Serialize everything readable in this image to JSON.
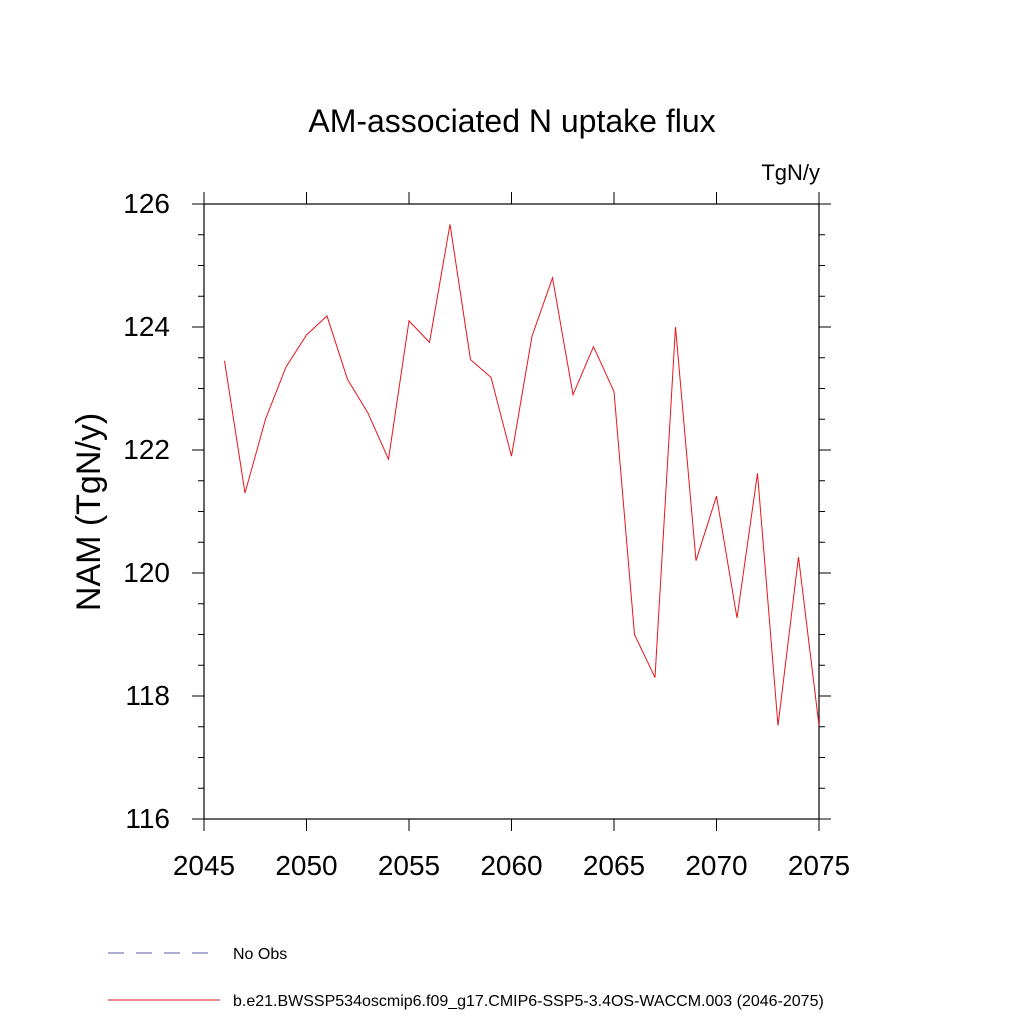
{
  "chart_data": {
    "type": "line",
    "title": "AM-associated N uptake flux",
    "units_label": "TgN/y",
    "xlabel": "",
    "ylabel": "NAM  (TgN/y)",
    "xlim": [
      2045,
      2075
    ],
    "ylim": [
      116,
      126
    ],
    "x_ticks": [
      2045,
      2050,
      2055,
      2060,
      2065,
      2070,
      2075
    ],
    "y_ticks": [
      116,
      118,
      120,
      122,
      124,
      126
    ],
    "series": [
      {
        "name": "b.e21.BWSSP534oscmip6.f09_g17.CMIP6-SSP5-3.4OS-WACCM.003 (2046-2075)",
        "color": "#e8141b",
        "x": [
          2046,
          2047,
          2048,
          2049,
          2050,
          2051,
          2052,
          2053,
          2054,
          2055,
          2056,
          2057,
          2058,
          2059,
          2060,
          2061,
          2062,
          2063,
          2064,
          2065,
          2066,
          2067,
          2068,
          2069,
          2070,
          2071,
          2072,
          2073,
          2074,
          2075
        ],
        "values": [
          123.45,
          121.3,
          122.5,
          123.35,
          123.87,
          124.18,
          123.15,
          122.6,
          121.85,
          124.1,
          123.75,
          125.67,
          123.47,
          123.18,
          121.9,
          123.85,
          124.8,
          122.9,
          123.68,
          122.95,
          119.0,
          118.3,
          124.0,
          120.2,
          121.25,
          119.27,
          121.62,
          117.52,
          120.26,
          117.52
        ]
      }
    ],
    "legend": [
      {
        "label": "No Obs",
        "style": "dashed",
        "color": "#5a5aa8"
      },
      {
        "label": "b.e21.BWSSP534oscmip6.f09_g17.CMIP6-SSP5-3.4OS-WACCM.003 (2046-2075)",
        "style": "solid",
        "color": "#e8141b"
      }
    ],
    "legend_position": "bottom-left",
    "grid": false
  }
}
